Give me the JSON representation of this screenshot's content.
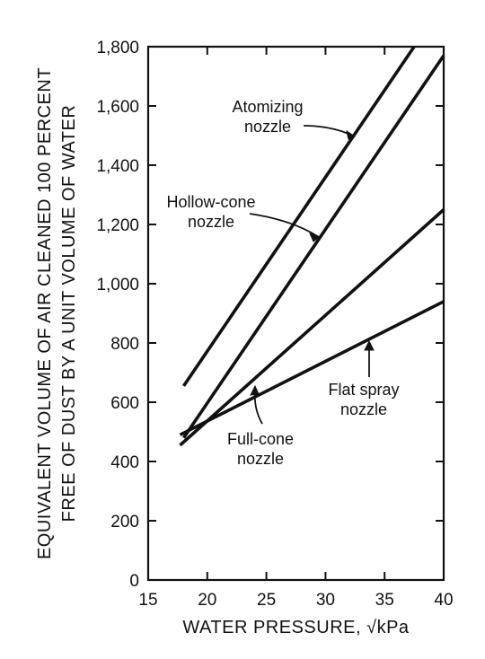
{
  "chart_data": {
    "type": "line",
    "xlabel": "WATER PRESSURE, √kPa",
    "ylabel_lines": [
      "EQUIVALENT VOLUME OF AIR CLEANED 100 PERCENT",
      "FREE OF DUST BY A UNIT VOLUME OF WATER"
    ],
    "xlim": [
      15,
      40
    ],
    "ylim": [
      0,
      1800
    ],
    "x_ticks": [
      15,
      20,
      25,
      30,
      35,
      40
    ],
    "y_ticks": [
      0,
      200,
      400,
      600,
      800,
      1000,
      1200,
      1400,
      1600,
      1800
    ],
    "y_tick_labels": [
      "0",
      "200",
      "400",
      "600",
      "800",
      "1,000",
      "1,200",
      "1,400",
      "1,600",
      "1,800"
    ],
    "grid": false,
    "series": [
      {
        "name": "Atomizing nozzle",
        "x": [
          18,
          37.5
        ],
        "y": [
          655,
          1800
        ]
      },
      {
        "name": "Hollow-cone nozzle",
        "x": [
          18,
          40
        ],
        "y": [
          480,
          1770
        ]
      },
      {
        "name": "Full-cone nozzle",
        "x": [
          17.7,
          40
        ],
        "y": [
          455,
          1250
        ]
      },
      {
        "name": "Flat spray nozzle",
        "x": [
          17.7,
          40
        ],
        "y": [
          490,
          940
        ]
      }
    ],
    "annotations": [
      {
        "lines": [
          "Atomizing",
          "nozzle"
        ]
      },
      {
        "lines": [
          "Hollow-cone",
          "nozzle"
        ]
      },
      {
        "lines": [
          "Full-cone",
          "nozzle"
        ]
      },
      {
        "lines": [
          "Flat spray",
          "nozzle"
        ]
      }
    ]
  }
}
